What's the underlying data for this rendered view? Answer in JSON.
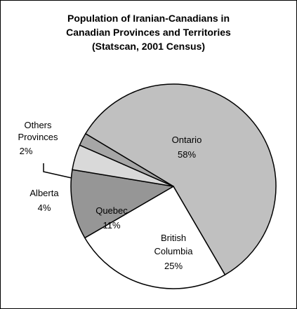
{
  "chart_data": {
    "type": "pie",
    "title_lines": [
      "Population of Iranian-Canadians in",
      "Canadian Provinces and Territories",
      "(Statscan, 2001 Census)"
    ],
    "slices": [
      {
        "name": "Ontario",
        "percent_label": "58%",
        "value": 58,
        "color": "#c0c0c0"
      },
      {
        "name": "British Columbia",
        "name_lines": [
          "British",
          "Columbia"
        ],
        "percent_label": "25%",
        "value": 25,
        "color": "#ffffff"
      },
      {
        "name": "Quebec",
        "percent_label": "11%",
        "value": 11,
        "color": "#969696"
      },
      {
        "name": "Alberta",
        "percent_label": "4%",
        "value": 4,
        "color": "#d9d9d9"
      },
      {
        "name": "Others Provinces",
        "name_lines": [
          "Others",
          "Provinces"
        ],
        "percent_label": "2%",
        "value": 2,
        "color": "#a6a6a6"
      }
    ],
    "legend": "none",
    "outline_color": "#000000"
  }
}
